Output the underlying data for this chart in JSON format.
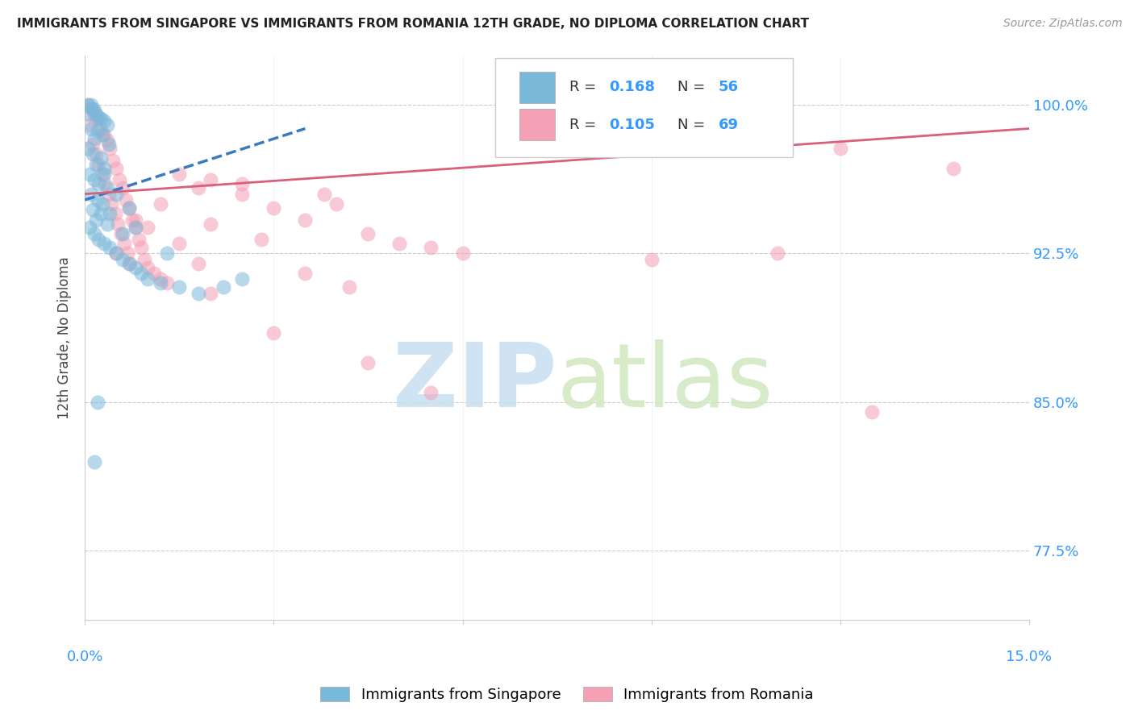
{
  "title": "IMMIGRANTS FROM SINGAPORE VS IMMIGRANTS FROM ROMANIA 12TH GRADE, NO DIPLOMA CORRELATION CHART",
  "source": "Source: ZipAtlas.com",
  "ylabel": "12th Grade, No Diploma",
  "yticks": [
    100.0,
    92.5,
    85.0,
    77.5
  ],
  "ytick_labels": [
    "100.0%",
    "92.5%",
    "85.0%",
    "77.5%"
  ],
  "xlim": [
    0.0,
    15.0
  ],
  "ylim": [
    74.0,
    102.5
  ],
  "singapore_R": 0.168,
  "singapore_N": 56,
  "romania_R": 0.105,
  "romania_N": 69,
  "singapore_color": "#7ab8d9",
  "romania_color": "#f4a0b5",
  "singapore_line_color": "#3a7abf",
  "romania_line_color": "#d9607a",
  "watermark_color": "#d5eaf5",
  "legend_label_sg": "Immigrants from Singapore",
  "legend_label_ro": "Immigrants from Romania",
  "singapore_points": [
    [
      0.05,
      100.0
    ],
    [
      0.1,
      100.0
    ],
    [
      0.12,
      99.8
    ],
    [
      0.15,
      99.7
    ],
    [
      0.08,
      99.5
    ],
    [
      0.18,
      99.5
    ],
    [
      0.22,
      99.4
    ],
    [
      0.25,
      99.3
    ],
    [
      0.3,
      99.2
    ],
    [
      0.35,
      99.0
    ],
    [
      0.1,
      98.8
    ],
    [
      0.2,
      98.7
    ],
    [
      0.28,
      98.5
    ],
    [
      0.15,
      98.3
    ],
    [
      0.38,
      98.0
    ],
    [
      0.05,
      97.8
    ],
    [
      0.12,
      97.5
    ],
    [
      0.25,
      97.3
    ],
    [
      0.18,
      97.0
    ],
    [
      0.3,
      96.8
    ],
    [
      0.08,
      96.5
    ],
    [
      0.15,
      96.2
    ],
    [
      0.22,
      96.0
    ],
    [
      0.35,
      95.8
    ],
    [
      0.1,
      95.5
    ],
    [
      0.2,
      95.2
    ],
    [
      0.28,
      95.0
    ],
    [
      0.12,
      94.7
    ],
    [
      0.25,
      94.5
    ],
    [
      0.18,
      94.2
    ],
    [
      0.35,
      94.0
    ],
    [
      0.08,
      93.8
    ],
    [
      0.15,
      93.5
    ],
    [
      0.22,
      93.2
    ],
    [
      0.3,
      93.0
    ],
    [
      0.4,
      92.8
    ],
    [
      0.5,
      92.5
    ],
    [
      0.6,
      92.2
    ],
    [
      0.7,
      92.0
    ],
    [
      0.8,
      91.8
    ],
    [
      0.9,
      91.5
    ],
    [
      1.0,
      91.2
    ],
    [
      1.2,
      91.0
    ],
    [
      1.5,
      90.8
    ],
    [
      0.6,
      93.5
    ],
    [
      0.4,
      94.5
    ],
    [
      0.5,
      95.5
    ],
    [
      0.7,
      94.8
    ],
    [
      0.8,
      93.8
    ],
    [
      0.3,
      96.5
    ],
    [
      1.8,
      90.5
    ],
    [
      2.2,
      90.8
    ],
    [
      0.2,
      85.0
    ],
    [
      0.15,
      82.0
    ],
    [
      2.5,
      91.2
    ],
    [
      1.3,
      92.5
    ]
  ],
  "romania_points": [
    [
      0.05,
      100.0
    ],
    [
      0.1,
      99.8
    ],
    [
      0.15,
      99.5
    ],
    [
      0.2,
      99.3
    ],
    [
      0.08,
      99.0
    ],
    [
      0.25,
      98.8
    ],
    [
      0.3,
      98.5
    ],
    [
      0.35,
      98.2
    ],
    [
      0.12,
      98.0
    ],
    [
      0.4,
      97.8
    ],
    [
      0.18,
      97.5
    ],
    [
      0.45,
      97.2
    ],
    [
      0.22,
      97.0
    ],
    [
      0.5,
      96.8
    ],
    [
      0.28,
      96.5
    ],
    [
      0.55,
      96.2
    ],
    [
      0.32,
      96.0
    ],
    [
      0.6,
      95.8
    ],
    [
      0.38,
      95.5
    ],
    [
      0.65,
      95.2
    ],
    [
      0.42,
      95.0
    ],
    [
      0.7,
      94.8
    ],
    [
      0.48,
      94.5
    ],
    [
      0.75,
      94.2
    ],
    [
      0.52,
      94.0
    ],
    [
      0.8,
      93.8
    ],
    [
      0.58,
      93.5
    ],
    [
      0.85,
      93.2
    ],
    [
      0.62,
      93.0
    ],
    [
      0.9,
      92.8
    ],
    [
      0.68,
      92.5
    ],
    [
      0.95,
      92.2
    ],
    [
      0.72,
      92.0
    ],
    [
      1.0,
      91.8
    ],
    [
      1.1,
      91.5
    ],
    [
      1.2,
      91.2
    ],
    [
      1.3,
      91.0
    ],
    [
      1.5,
      96.5
    ],
    [
      1.8,
      95.8
    ],
    [
      2.0,
      96.2
    ],
    [
      2.5,
      95.5
    ],
    [
      3.0,
      94.8
    ],
    [
      3.5,
      94.2
    ],
    [
      4.0,
      95.0
    ],
    [
      4.5,
      93.5
    ],
    [
      5.0,
      93.0
    ],
    [
      5.5,
      92.8
    ],
    [
      6.0,
      92.5
    ],
    [
      1.5,
      93.0
    ],
    [
      2.0,
      94.0
    ],
    [
      2.8,
      93.2
    ],
    [
      1.8,
      92.0
    ],
    [
      3.5,
      91.5
    ],
    [
      4.2,
      90.8
    ],
    [
      0.5,
      92.5
    ],
    [
      0.8,
      94.2
    ],
    [
      1.2,
      95.0
    ],
    [
      2.5,
      96.0
    ],
    [
      3.8,
      95.5
    ],
    [
      1.0,
      93.8
    ],
    [
      12.0,
      97.8
    ],
    [
      13.8,
      96.8
    ],
    [
      11.0,
      92.5
    ],
    [
      9.0,
      92.2
    ],
    [
      2.0,
      90.5
    ],
    [
      3.0,
      88.5
    ],
    [
      4.5,
      87.0
    ],
    [
      5.5,
      85.5
    ],
    [
      12.5,
      84.5
    ]
  ],
  "sg_trend_x": [
    0.0,
    3.5
  ],
  "sg_trend_y": [
    95.2,
    98.8
  ],
  "ro_trend_x": [
    0.0,
    15.0
  ],
  "ro_trend_y": [
    95.5,
    98.8
  ]
}
